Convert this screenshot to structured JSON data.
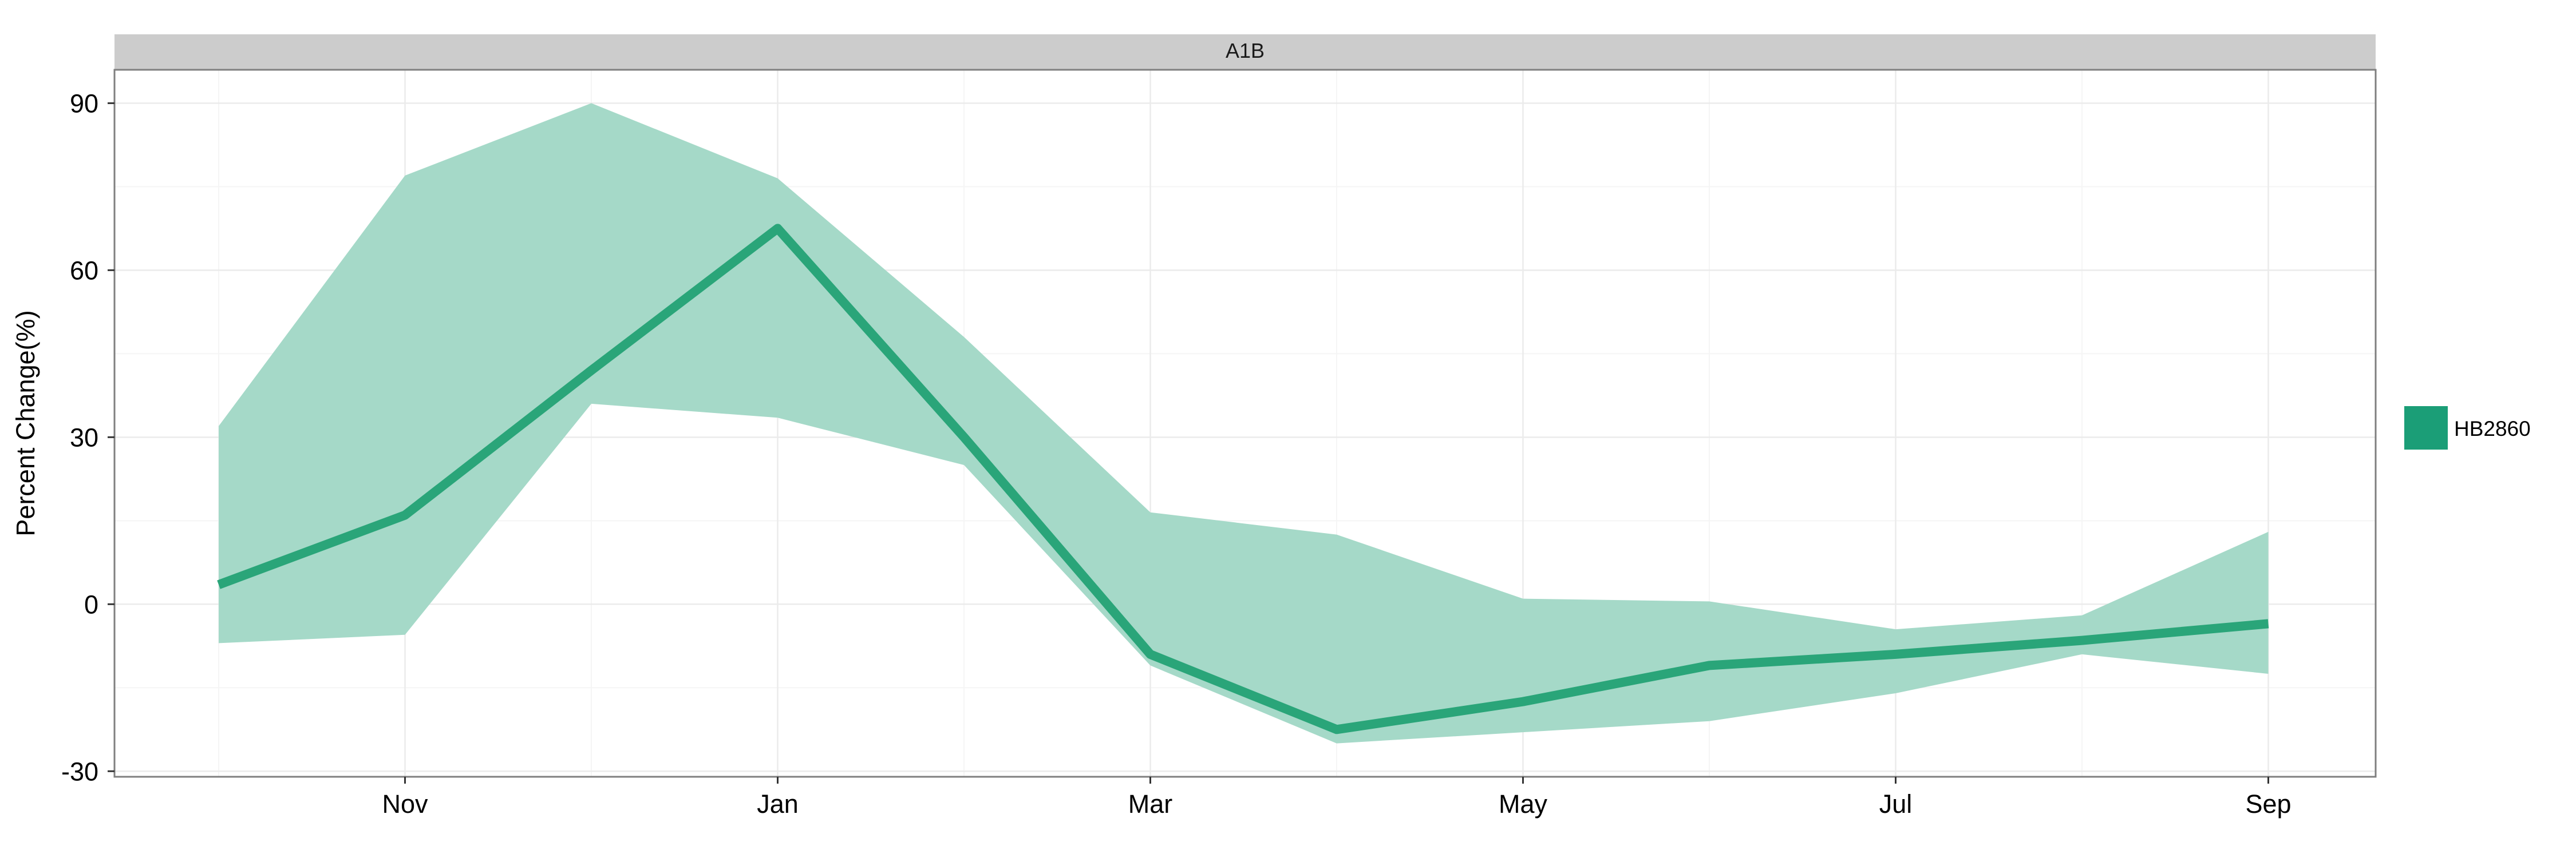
{
  "chart_data": {
    "type": "area",
    "panel_title": "A1B",
    "xlabel": "",
    "ylabel": "Percent Change(%)",
    "x": [
      "Oct",
      "Nov",
      "Dec",
      "Jan",
      "Feb",
      "Mar",
      "Apr",
      "May",
      "Jun",
      "Jul",
      "Aug",
      "Sep"
    ],
    "x_tick_labels": [
      "Nov",
      "Jan",
      "Mar",
      "May",
      "Jul",
      "Sep"
    ],
    "y_ticks": [
      "-30",
      "0",
      "30",
      "60",
      "90"
    ],
    "ylim": [
      -31,
      96
    ],
    "grid": true,
    "legend_position": "right",
    "series": [
      {
        "name": "HB2860",
        "color": "#1b9e77",
        "line": [
          3.5,
          16,
          42,
          67.5,
          30,
          -9,
          -22.5,
          -17.5,
          -11,
          -9,
          -6.5,
          -3.5
        ],
        "upper": [
          32,
          77,
          90,
          76.5,
          48,
          16.5,
          12.5,
          1,
          0.5,
          -4.5,
          -2,
          13
        ],
        "lower": [
          -7,
          -5.5,
          36,
          33.5,
          25,
          -11,
          -25,
          -23,
          -21,
          -16,
          -9,
          -12.5
        ]
      }
    ],
    "legend": [
      {
        "label": "HB2860",
        "color": "#1b9e77"
      }
    ],
    "colors": {
      "line": "#2aa579",
      "ribbon": "#a5d9c8",
      "strip": "#cccccc",
      "grid_major": "#ebebeb",
      "grid_minor": "#f5f5f5",
      "border": "#7f7f7f"
    }
  }
}
